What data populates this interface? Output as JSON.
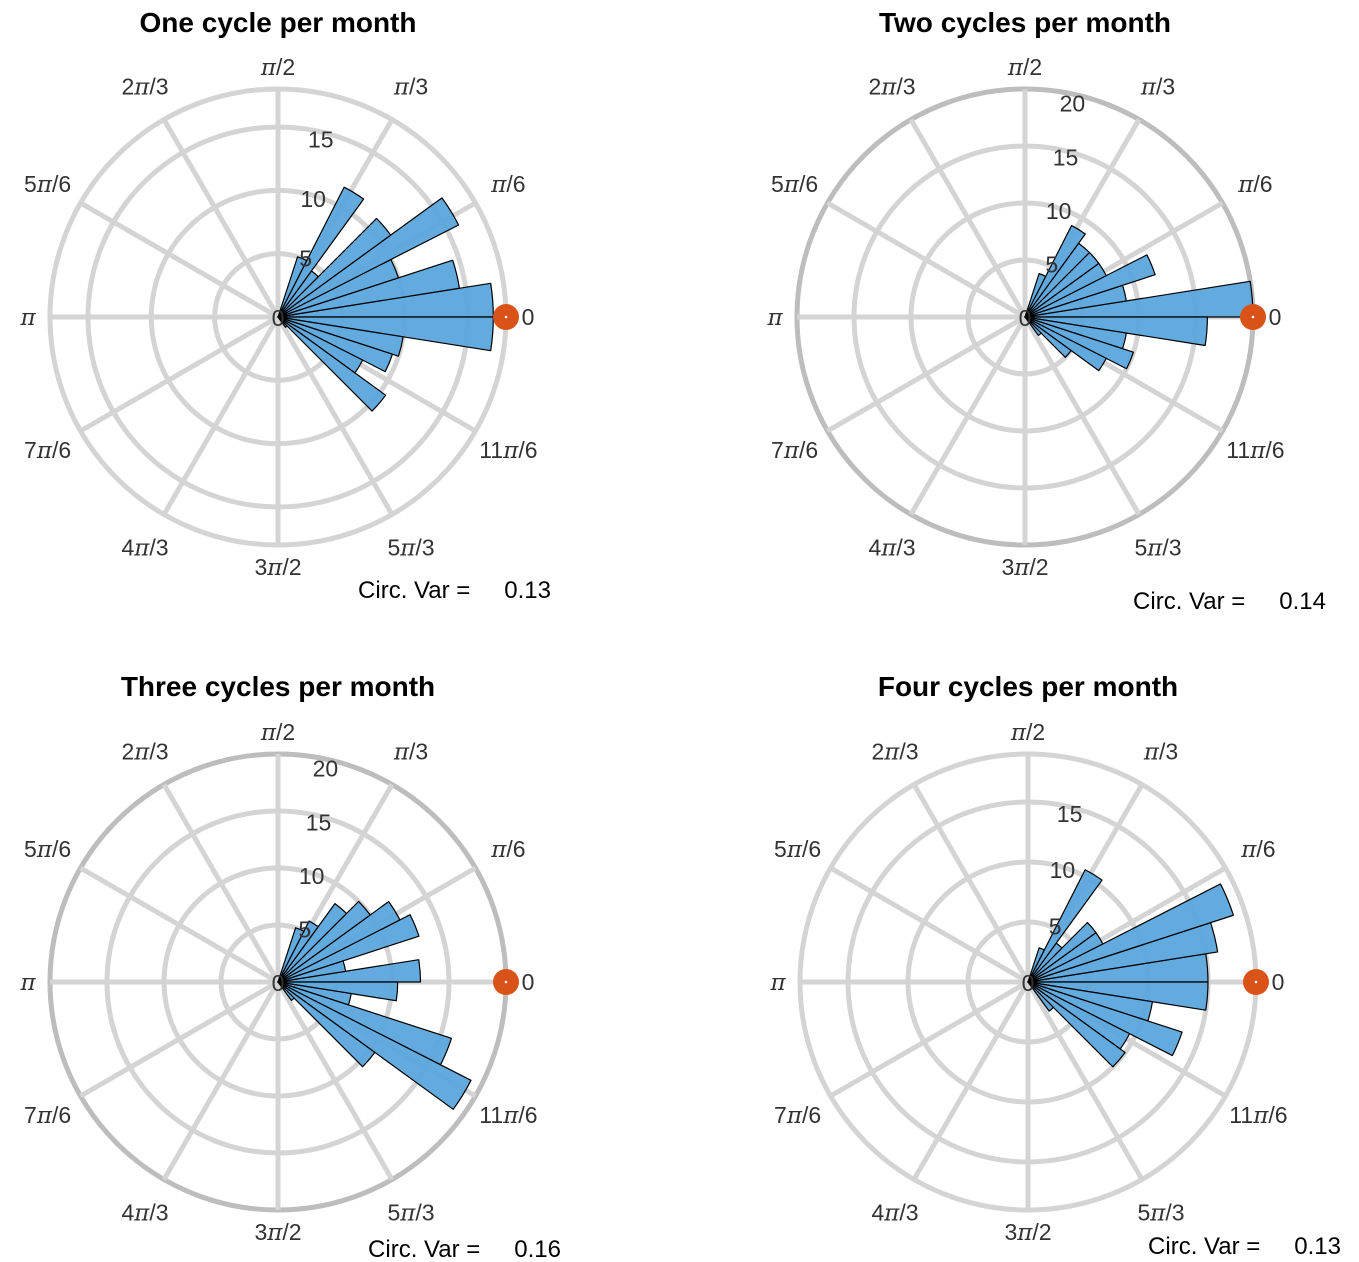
{
  "chart_data": [
    {
      "type": "polar-histogram",
      "title": "One cycle per month",
      "angle_ticks": [
        "0",
        "π/6",
        "π/3",
        "π/2",
        "2π/3",
        "5π/6",
        "π",
        "7π/6",
        "4π/3",
        "3π/2",
        "5π/3",
        "11π/6"
      ],
      "r_ticks": [
        "0",
        "5",
        "10",
        "15"
      ],
      "rlim": [
        0,
        18
      ],
      "bin_width_deg": 9,
      "bins": [
        {
          "angle_deg": 4.5,
          "value": 17
        },
        {
          "angle_deg": 13.5,
          "value": 14.5
        },
        {
          "angle_deg": 22.5,
          "value": 10
        },
        {
          "angle_deg": 31.5,
          "value": 16
        },
        {
          "angle_deg": 40.5,
          "value": 11
        },
        {
          "angle_deg": 49.5,
          "value": 4.5
        },
        {
          "angle_deg": 58.5,
          "value": 11.5
        },
        {
          "angle_deg": 67.5,
          "value": 5
        },
        {
          "angle_deg": 355.5,
          "value": 17
        },
        {
          "angle_deg": 346.5,
          "value": 10
        },
        {
          "angle_deg": 337.5,
          "value": 9.5
        },
        {
          "angle_deg": 328.5,
          "value": 7.5
        },
        {
          "angle_deg": 319.5,
          "value": 10.5
        },
        {
          "angle_deg": 310.5,
          "value": 1
        }
      ],
      "mean_angle_deg": 0,
      "circ_var_label": "Circ. Var =",
      "circ_var_value": "0.13",
      "grid": true
    },
    {
      "type": "polar-histogram",
      "title": "Two cycles per month",
      "angle_ticks": [
        "0",
        "π/6",
        "π/3",
        "π/2",
        "2π/3",
        "5π/6",
        "π",
        "7π/6",
        "4π/3",
        "3π/2",
        "5π/3",
        "11π/6"
      ],
      "r_ticks": [
        "0",
        "5",
        "10",
        "15",
        "20"
      ],
      "rlim": [
        0,
        20
      ],
      "bin_width_deg": 9,
      "bins": [
        {
          "angle_deg": 4.5,
          "value": 20
        },
        {
          "angle_deg": 13.5,
          "value": 9
        },
        {
          "angle_deg": 22.5,
          "value": 12
        },
        {
          "angle_deg": 31.5,
          "value": 8
        },
        {
          "angle_deg": 40.5,
          "value": 8
        },
        {
          "angle_deg": 49.5,
          "value": 8
        },
        {
          "angle_deg": 58.5,
          "value": 9
        },
        {
          "angle_deg": 67.5,
          "value": 4
        },
        {
          "angle_deg": 355.5,
          "value": 16
        },
        {
          "angle_deg": 346.5,
          "value": 9
        },
        {
          "angle_deg": 337.5,
          "value": 10
        },
        {
          "angle_deg": 328.5,
          "value": 8
        },
        {
          "angle_deg": 319.5,
          "value": 5
        },
        {
          "angle_deg": 310.5,
          "value": 2
        }
      ],
      "mean_angle_deg": 0,
      "circ_var_label": "Circ. Var =",
      "circ_var_value": "0.14",
      "grid": true
    },
    {
      "type": "polar-histogram",
      "title": "Three cycles per month",
      "angle_ticks": [
        "0",
        "π/6",
        "π/3",
        "π/2",
        "2π/3",
        "5π/6",
        "π",
        "7π/6",
        "4π/3",
        "3π/2",
        "5π/3",
        "11π/6"
      ],
      "r_ticks": [
        "0",
        "5",
        "10",
        "15",
        "20"
      ],
      "rlim": [
        0,
        20
      ],
      "bin_width_deg": 9,
      "bins": [
        {
          "angle_deg": 4.5,
          "value": 12.5
        },
        {
          "angle_deg": 13.5,
          "value": 6
        },
        {
          "angle_deg": 22.5,
          "value": 13
        },
        {
          "angle_deg": 31.5,
          "value": 12
        },
        {
          "angle_deg": 40.5,
          "value": 10
        },
        {
          "angle_deg": 49.5,
          "value": 8.5
        },
        {
          "angle_deg": 58.5,
          "value": 6
        },
        {
          "angle_deg": 67.5,
          "value": 5
        },
        {
          "angle_deg": 355.5,
          "value": 10.5
        },
        {
          "angle_deg": 346.5,
          "value": 6.5
        },
        {
          "angle_deg": 337.5,
          "value": 16
        },
        {
          "angle_deg": 328.5,
          "value": 19
        },
        {
          "angle_deg": 319.5,
          "value": 10.5
        },
        {
          "angle_deg": 310.5,
          "value": 2
        }
      ],
      "mean_angle_deg": 0,
      "circ_var_label": "Circ. Var =",
      "circ_var_value": "0.16",
      "grid": true
    },
    {
      "type": "polar-histogram",
      "title": "Four cycles per month",
      "angle_ticks": [
        "0",
        "π/6",
        "π/3",
        "π/2",
        "2π/3",
        "5π/6",
        "π",
        "7π/6",
        "4π/3",
        "3π/2",
        "5π/3",
        "11π/6"
      ],
      "r_ticks": [
        "0",
        "5",
        "10",
        "15"
      ],
      "rlim": [
        0,
        19
      ],
      "bin_width_deg": 9,
      "bins": [
        {
          "angle_deg": 4.5,
          "value": 15
        },
        {
          "angle_deg": 13.5,
          "value": 16
        },
        {
          "angle_deg": 22.5,
          "value": 18
        },
        {
          "angle_deg": 31.5,
          "value": 7
        },
        {
          "angle_deg": 40.5,
          "value": 7
        },
        {
          "angle_deg": 49.5,
          "value": 4
        },
        {
          "angle_deg": 58.5,
          "value": 10.5
        },
        {
          "angle_deg": 67.5,
          "value": 3
        },
        {
          "angle_deg": 355.5,
          "value": 15
        },
        {
          "angle_deg": 346.5,
          "value": 10.5
        },
        {
          "angle_deg": 337.5,
          "value": 13.5
        },
        {
          "angle_deg": 328.5,
          "value": 9.5
        },
        {
          "angle_deg": 319.5,
          "value": 10
        },
        {
          "angle_deg": 310.5,
          "value": 3
        }
      ],
      "mean_angle_deg": 0,
      "circ_var_label": "Circ. Var =",
      "circ_var_value": "0.13",
      "grid": true
    }
  ],
  "colors": {
    "bar_fill": "#5BA7DC",
    "bar_stroke": "#000000",
    "grid": "#d4d4d4",
    "outer_ring_strong": "#bdbdbd",
    "mean_marker": "#D95319",
    "tick_text": "#333333"
  }
}
